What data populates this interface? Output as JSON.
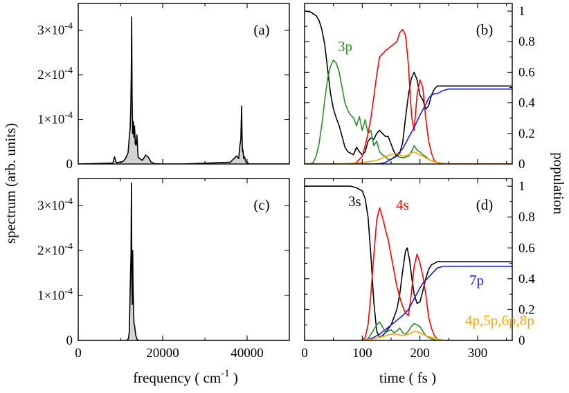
{
  "chart_data": [
    {
      "panel": "(a)",
      "type": "area",
      "ylabel": "spectrum (arb. units)",
      "xlim": [
        0,
        50000
      ],
      "ylim": [
        0,
        0.00036
      ],
      "y_ticks": [
        {
          "value": 0,
          "mant": "0",
          "exp": ""
        },
        {
          "value": 0.0001,
          "mant": "1×10",
          "exp": "-4"
        },
        {
          "value": 0.0002,
          "mant": "2×10",
          "exp": "-4"
        },
        {
          "value": 0.0003,
          "mant": "3×10",
          "exp": "-4"
        }
      ],
      "series": [
        {
          "name": "",
          "color": "#000000",
          "fill": "#d3d3d3",
          "x": [
            0,
            8200,
            8600,
            9000,
            10500,
            11200,
            11800,
            12100,
            12300,
            12450,
            12550,
            12650,
            12750,
            12900,
            13050,
            13200,
            13350,
            13500,
            13700,
            13900,
            14200,
            14600,
            15200,
            16000,
            16600,
            17200,
            18000,
            19500,
            25000,
            36000,
            37500,
            38000,
            38300,
            38500,
            38700,
            38800,
            38900,
            39000,
            39200,
            39400,
            39700,
            40100,
            40500,
            50000
          ],
          "y": [
            0,
            2e-06,
            1.6e-05,
            3e-06,
            5e-06,
            1.2e-05,
            2.5e-05,
            6e-05,
            8e-05,
            0.000125,
            0.000195,
            0.00033,
            0.000155,
            6.8e-05,
            9.5e-05,
            6e-05,
            8.5e-05,
            4.5e-05,
            4.2e-05,
            6.5e-05,
            1.5e-05,
            1.2e-05,
            8e-06,
            2e-05,
            1.5e-05,
            5e-06,
            1e-06,
            0.0,
            0.0,
            4e-06,
            1.8e-05,
            1.2e-05,
            4.2e-05,
            5.5e-05,
            0.00013,
            6e-05,
            2.8e-05,
            3.2e-05,
            1.2e-05,
            1.6e-05,
            5e-06,
            3e-06,
            0.0,
            0
          ]
        }
      ]
    },
    {
      "panel": "(b)",
      "type": "line",
      "ylabel": "population",
      "xlim": [
        0,
        360
      ],
      "ylim": [
        0,
        1.05
      ],
      "y_ticks": [
        0,
        0.2,
        0.4,
        0.6,
        0.8,
        1
      ],
      "series": [
        {
          "name": "",
          "color": "#000000",
          "x": [
            0,
            10,
            20,
            25,
            30,
            35,
            40,
            45,
            50,
            55,
            60,
            65,
            70,
            75,
            80,
            85,
            90,
            95,
            100,
            105,
            110,
            115,
            120,
            125,
            130,
            135,
            140,
            145,
            150,
            155,
            160,
            165,
            170,
            175,
            180,
            185,
            190,
            195,
            200,
            205,
            210,
            215,
            220,
            225,
            230,
            240,
            250,
            260,
            300,
            360
          ],
          "y": [
            1.0,
            0.995,
            0.97,
            0.94,
            0.88,
            0.78,
            0.62,
            0.46,
            0.36,
            0.3,
            0.25,
            0.18,
            0.11,
            0.08,
            0.07,
            0.06,
            0.11,
            0.08,
            0.06,
            0.08,
            0.15,
            0.17,
            0.16,
            0.2,
            0.22,
            0.2,
            0.18,
            0.18,
            0.13,
            0.08,
            0.05,
            0.07,
            0.14,
            0.3,
            0.45,
            0.56,
            0.6,
            0.55,
            0.45,
            0.42,
            0.36,
            0.38,
            0.45,
            0.49,
            0.51,
            0.51,
            0.51,
            0.51,
            0.51,
            0.51
          ]
        },
        {
          "name": "3p",
          "color": "#2a8a2a",
          "x": [
            0,
            10,
            15,
            20,
            25,
            30,
            35,
            40,
            45,
            50,
            55,
            60,
            65,
            70,
            75,
            80,
            85,
            90,
            95,
            100,
            105,
            110,
            115,
            120,
            125,
            130,
            135,
            140,
            145,
            150,
            160,
            170,
            180,
            185,
            190,
            195,
            200,
            205,
            210,
            215,
            220,
            230,
            240,
            360
          ],
          "y": [
            0,
            0.001,
            0.01,
            0.05,
            0.13,
            0.26,
            0.42,
            0.56,
            0.64,
            0.68,
            0.66,
            0.6,
            0.5,
            0.4,
            0.35,
            0.32,
            0.3,
            0.25,
            0.31,
            0.22,
            0.29,
            0.2,
            0.22,
            0.12,
            0.15,
            0.08,
            0.06,
            0.05,
            0.03,
            0.03,
            0.05,
            0.04,
            0.05,
            0.08,
            0.12,
            0.09,
            0.08,
            0.06,
            0.05,
            0.03,
            0.02,
            0.01,
            0.0,
            0
          ]
        },
        {
          "name": "",
          "color": "#ff0000",
          "x": [
            0,
            80,
            90,
            100,
            105,
            110,
            115,
            120,
            125,
            130,
            140,
            150,
            160,
            165,
            170,
            175,
            180,
            183,
            186,
            190,
            195,
            200,
            205,
            210,
            215,
            220,
            225,
            230,
            240,
            360
          ],
          "y": [
            0,
            0.0,
            0.01,
            0.05,
            0.12,
            0.2,
            0.3,
            0.44,
            0.58,
            0.7,
            0.74,
            0.77,
            0.8,
            0.86,
            0.88,
            0.84,
            0.65,
            0.45,
            0.3,
            0.22,
            0.45,
            0.55,
            0.5,
            0.3,
            0.15,
            0.07,
            0.02,
            0.01,
            0.0,
            0
          ]
        },
        {
          "name": "",
          "color": "#1a1aee",
          "x": [
            0,
            120,
            130,
            140,
            150,
            160,
            170,
            180,
            190,
            200,
            210,
            215,
            220,
            225,
            230,
            240,
            250,
            270,
            300,
            360
          ],
          "y": [
            0,
            0,
            0.002,
            0.01,
            0.03,
            0.06,
            0.1,
            0.17,
            0.24,
            0.32,
            0.39,
            0.43,
            0.45,
            0.46,
            0.46,
            0.48,
            0.49,
            0.49,
            0.49,
            0.49
          ]
        },
        {
          "name": "",
          "color": "#ffa500",
          "x": [
            0,
            60,
            80,
            100,
            110,
            120,
            130,
            140,
            150,
            160,
            170,
            180,
            190,
            200,
            210,
            220,
            230,
            240,
            250,
            360
          ],
          "y": [
            0,
            0.0,
            0.005,
            0.01,
            0.015,
            0.02,
            0.03,
            0.05,
            0.06,
            0.07,
            0.05,
            0.06,
            0.08,
            0.06,
            0.04,
            0.02,
            0.01,
            0.005,
            0.0,
            0
          ]
        }
      ]
    },
    {
      "panel": "(c)",
      "type": "area",
      "xlabel": "frequency ( cm",
      "xlabel_sup": "-1",
      "xlabel_tail": " )",
      "xlim": [
        0,
        50000
      ],
      "ylim": [
        0,
        0.00036
      ],
      "x_ticks": [
        0,
        20000,
        40000
      ],
      "y_ticks": [
        {
          "value": 0,
          "mant": "0",
          "exp": ""
        },
        {
          "value": 0.0001,
          "mant": "1×10",
          "exp": "-4"
        },
        {
          "value": 0.0002,
          "mant": "2×10",
          "exp": "-4"
        },
        {
          "value": 0.0003,
          "mant": "3×10",
          "exp": "-4"
        }
      ],
      "series": [
        {
          "name": "",
          "color": "#000000",
          "fill": "#d3d3d3",
          "x": [
            0,
            11500,
            11900,
            12100,
            12250,
            12400,
            12500,
            12600,
            12700,
            12800,
            12900,
            13000,
            13100,
            13200,
            13400,
            13600,
            13900,
            14300,
            50000
          ],
          "y": [
            0,
            0.0,
            4e-06,
            2e-05,
            8.5e-05,
            0.00015,
            0.000195,
            0.00035,
            0.00014,
            8e-05,
            0.0002,
            0.000115,
            7.5e-05,
            4e-05,
            3e-05,
            1.2e-05,
            3e-06,
            0.0,
            0
          ]
        }
      ]
    },
    {
      "panel": "(d)",
      "type": "line",
      "xlabel": "time ( fs )",
      "xlim": [
        0,
        360
      ],
      "ylim": [
        0,
        1.05
      ],
      "x_ticks": [
        0,
        100,
        200,
        300
      ],
      "y_ticks": [
        0,
        0.2,
        0.4,
        0.6,
        0.8,
        1
      ],
      "series": [
        {
          "name": "3s",
          "color": "#000000",
          "x": [
            0,
            60,
            80,
            90,
            100,
            105,
            110,
            115,
            120,
            125,
            130,
            135,
            140,
            150,
            160,
            165,
            170,
            175,
            178,
            182,
            186,
            190,
            195,
            200,
            205,
            210,
            215,
            220,
            225,
            230,
            240,
            260,
            300,
            360
          ],
          "y": [
            1.0,
            1.0,
            1.0,
            0.99,
            0.97,
            0.92,
            0.8,
            0.55,
            0.25,
            0.06,
            0.02,
            0.03,
            0.05,
            0.1,
            0.2,
            0.3,
            0.45,
            0.58,
            0.6,
            0.52,
            0.4,
            0.3,
            0.24,
            0.25,
            0.32,
            0.4,
            0.46,
            0.49,
            0.5,
            0.51,
            0.51,
            0.51,
            0.51,
            0.51
          ]
        },
        {
          "name": "4s",
          "color": "#ff0000",
          "x": [
            0,
            100,
            105,
            110,
            115,
            120,
            125,
            130,
            135,
            140,
            145,
            150,
            155,
            160,
            165,
            170,
            175,
            180,
            185,
            190,
            195,
            200,
            205,
            210,
            215,
            220,
            225,
            230,
            240,
            360
          ],
          "y": [
            0,
            0.0,
            0.02,
            0.1,
            0.3,
            0.55,
            0.78,
            0.86,
            0.8,
            0.72,
            0.65,
            0.55,
            0.45,
            0.35,
            0.28,
            0.22,
            0.18,
            0.16,
            0.3,
            0.48,
            0.56,
            0.5,
            0.42,
            0.3,
            0.15,
            0.08,
            0.03,
            0.01,
            0.0,
            0
          ]
        },
        {
          "name": "7p",
          "color": "#1a1aee",
          "x": [
            0,
            100,
            110,
            120,
            130,
            140,
            150,
            160,
            170,
            180,
            190,
            200,
            205,
            210,
            215,
            220,
            225,
            230,
            240,
            260,
            300,
            360
          ],
          "y": [
            0,
            0,
            0.005,
            0.02,
            0.04,
            0.07,
            0.1,
            0.13,
            0.16,
            0.2,
            0.27,
            0.34,
            0.37,
            0.39,
            0.41,
            0.43,
            0.45,
            0.47,
            0.48,
            0.48,
            0.48,
            0.48
          ]
        },
        {
          "name": "",
          "color": "#2a8a2a",
          "x": [
            0,
            100,
            110,
            115,
            120,
            125,
            130,
            135,
            140,
            145,
            150,
            155,
            160,
            165,
            170,
            175,
            180,
            185,
            190,
            195,
            200,
            205,
            210,
            220,
            230,
            360
          ],
          "y": [
            0,
            0.0,
            0.01,
            0.04,
            0.07,
            0.1,
            0.12,
            0.09,
            0.05,
            0.06,
            0.07,
            0.05,
            0.06,
            0.08,
            0.05,
            0.04,
            0.06,
            0.09,
            0.11,
            0.1,
            0.09,
            0.06,
            0.03,
            0.01,
            0.0,
            0
          ]
        },
        {
          "name": "4p,5p,6p,8p",
          "color": "#ffa500",
          "x": [
            0,
            100,
            110,
            120,
            130,
            140,
            150,
            160,
            170,
            180,
            190,
            200,
            210,
            220,
            230,
            240,
            360
          ],
          "y": [
            0,
            0.0,
            0.005,
            0.01,
            0.02,
            0.03,
            0.04,
            0.04,
            0.03,
            0.04,
            0.06,
            0.05,
            0.03,
            0.02,
            0.01,
            0.0,
            0
          ]
        }
      ]
    }
  ]
}
